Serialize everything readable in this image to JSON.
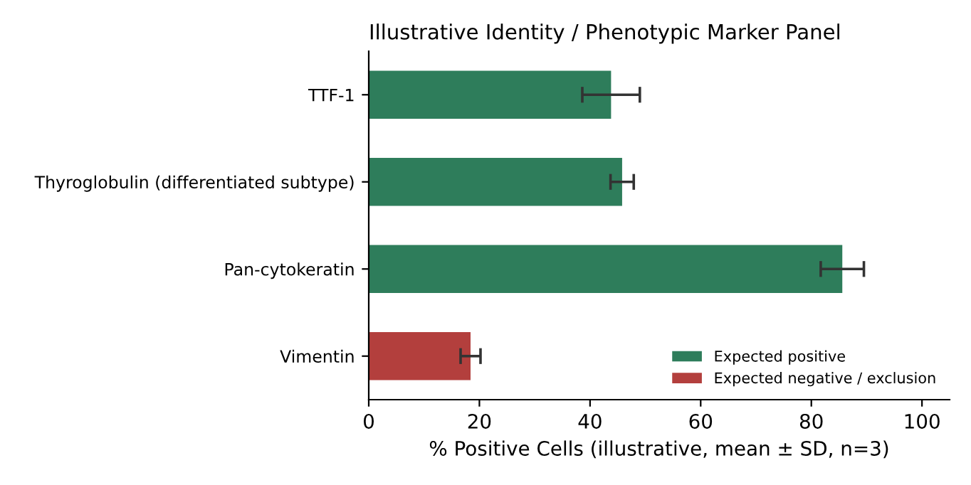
{
  "chart_data": {
    "type": "bar",
    "orientation": "horizontal",
    "title": "Illustrative Identity / Phenotypic Marker Panel",
    "xlabel": "% Positive Cells (illustrative, mean ± SD, n=3)",
    "categories": [
      "TTF-1",
      "Thyroglobulin (differentiated subtype)",
      "Pan-cytokeratin",
      "Vimentin"
    ],
    "series": [
      {
        "name": "Expected positive",
        "color": "#2e7d5b",
        "values": [
          43.8,
          45.8,
          85.6,
          null
        ],
        "errors": [
          5.2,
          2.1,
          3.9,
          null
        ]
      },
      {
        "name": "Expected negative / exclusion",
        "color": "#b33f3d",
        "values": [
          null,
          null,
          null,
          18.4
        ],
        "errors": [
          null,
          null,
          null,
          1.8
        ]
      }
    ],
    "xlim": [
      0,
      105
    ],
    "xticks": [
      0,
      20,
      40,
      60,
      80,
      100
    ],
    "grid": false,
    "legend": "bottom right"
  }
}
